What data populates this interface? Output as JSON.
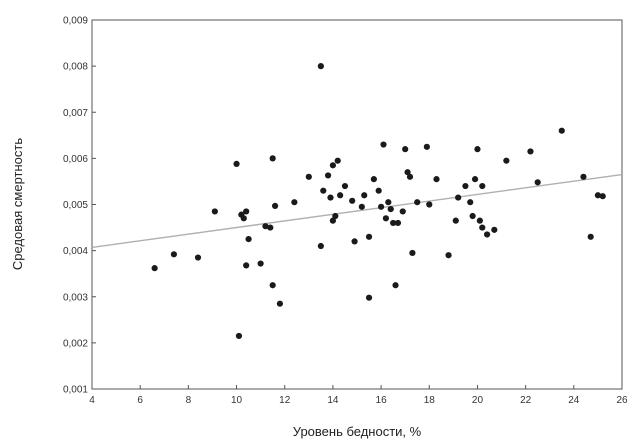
{
  "chart_data": {
    "type": "scatter",
    "title": "",
    "xlabel": "Уровень бедности, %",
    "ylabel": "Средовая смертность",
    "xlim": [
      4,
      26
    ],
    "ylim": [
      0.001,
      0.009
    ],
    "x_ticks": [
      "4",
      "6",
      "8",
      "10",
      "12",
      "14",
      "16",
      "18",
      "20",
      "22",
      "24",
      "26"
    ],
    "y_ticks": [
      "0,001",
      "0,002",
      "0,003",
      "0,004",
      "0,005",
      "0,006",
      "0,007",
      "0,008",
      "0,009"
    ],
    "grid": false,
    "legend": "none",
    "colors": {
      "points": "#1a1a1a",
      "trend": "#b0b0b0",
      "axes": "#555555",
      "ticks": "#333333"
    },
    "trend_line": {
      "x": [
        4,
        26
      ],
      "y": [
        0.00407,
        0.00565
      ]
    },
    "series": [
      {
        "points": [
          [
            6.6,
            0.00362
          ],
          [
            7.4,
            0.00392
          ],
          [
            8.4,
            0.00385
          ],
          [
            9.1,
            0.00485
          ],
          [
            10.0,
            0.00588
          ],
          [
            10.1,
            0.00215
          ],
          [
            10.2,
            0.00478
          ],
          [
            10.3,
            0.0047
          ],
          [
            10.4,
            0.00485
          ],
          [
            10.4,
            0.00368
          ],
          [
            10.5,
            0.00425
          ],
          [
            11.0,
            0.00372
          ],
          [
            11.2,
            0.00453
          ],
          [
            11.4,
            0.0045
          ],
          [
            11.5,
            0.006
          ],
          [
            11.5,
            0.00325
          ],
          [
            11.6,
            0.00497
          ],
          [
            11.8,
            0.00285
          ],
          [
            12.4,
            0.00505
          ],
          [
            13.0,
            0.0056
          ],
          [
            13.5,
            0.008
          ],
          [
            13.5,
            0.0041
          ],
          [
            13.6,
            0.0053
          ],
          [
            13.8,
            0.00563
          ],
          [
            13.9,
            0.00515
          ],
          [
            14.0,
            0.00585
          ],
          [
            14.0,
            0.00465
          ],
          [
            14.1,
            0.00475
          ],
          [
            14.2,
            0.00595
          ],
          [
            14.3,
            0.0052
          ],
          [
            14.5,
            0.0054
          ],
          [
            14.8,
            0.00508
          ],
          [
            14.9,
            0.0042
          ],
          [
            15.2,
            0.00495
          ],
          [
            15.3,
            0.0052
          ],
          [
            15.5,
            0.00298
          ],
          [
            15.5,
            0.0043
          ],
          [
            15.7,
            0.00555
          ],
          [
            15.9,
            0.0053
          ],
          [
            16.0,
            0.00495
          ],
          [
            16.1,
            0.0063
          ],
          [
            16.2,
            0.0047
          ],
          [
            16.3,
            0.00505
          ],
          [
            16.4,
            0.0049
          ],
          [
            16.5,
            0.0046
          ],
          [
            16.6,
            0.00325
          ],
          [
            16.7,
            0.0046
          ],
          [
            16.9,
            0.00485
          ],
          [
            17.0,
            0.0062
          ],
          [
            17.1,
            0.0057
          ],
          [
            17.2,
            0.0056
          ],
          [
            17.3,
            0.00395
          ],
          [
            17.5,
            0.00505
          ],
          [
            17.9,
            0.00625
          ],
          [
            18.0,
            0.005
          ],
          [
            18.3,
            0.00555
          ],
          [
            18.8,
            0.0039
          ],
          [
            19.1,
            0.00465
          ],
          [
            19.2,
            0.00515
          ],
          [
            19.5,
            0.0054
          ],
          [
            19.7,
            0.00505
          ],
          [
            19.8,
            0.00475
          ],
          [
            19.9,
            0.00555
          ],
          [
            20.0,
            0.0062
          ],
          [
            20.1,
            0.00465
          ],
          [
            20.2,
            0.0054
          ],
          [
            20.2,
            0.0045
          ],
          [
            20.4,
            0.00435
          ],
          [
            20.7,
            0.00445
          ],
          [
            21.2,
            0.00595
          ],
          [
            22.2,
            0.00615
          ],
          [
            22.5,
            0.00548
          ],
          [
            23.5,
            0.0066
          ],
          [
            24.4,
            0.0056
          ],
          [
            24.7,
            0.0043
          ],
          [
            25.0,
            0.0052
          ],
          [
            25.2,
            0.00518
          ]
        ]
      }
    ]
  }
}
